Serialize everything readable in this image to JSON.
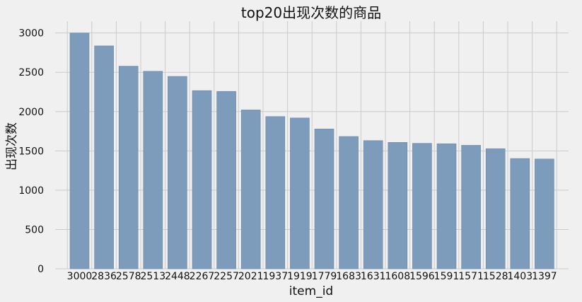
{
  "chart_data": {
    "type": "bar",
    "title": "top20出现次数的商品",
    "xlabel": "item_id",
    "ylabel": "出现次数",
    "categories": [
      "3000",
      "2836",
      "2578",
      "2513",
      "2448",
      "2267",
      "2257",
      "2021",
      "1937",
      "1919",
      "1779",
      "1683",
      "1631",
      "1608",
      "1596",
      "1591",
      "1571",
      "1528",
      "1403",
      "1397"
    ],
    "values": [
      3000,
      2836,
      2578,
      2513,
      2448,
      2267,
      2257,
      2021,
      1937,
      1919,
      1779,
      1683,
      1631,
      1608,
      1596,
      1591,
      1571,
      1528,
      1403,
      1397
    ],
    "ylim": [
      0,
      3150
    ],
    "yticks": [
      0,
      500,
      1000,
      1500,
      2000,
      2500,
      3000
    ],
    "ytick_labels": [
      "0",
      "500",
      "1000",
      "1500",
      "2000",
      "2500",
      "3000"
    ],
    "grid": true,
    "bar_color": "#7d9bbb",
    "background": "#f0f0f0"
  }
}
